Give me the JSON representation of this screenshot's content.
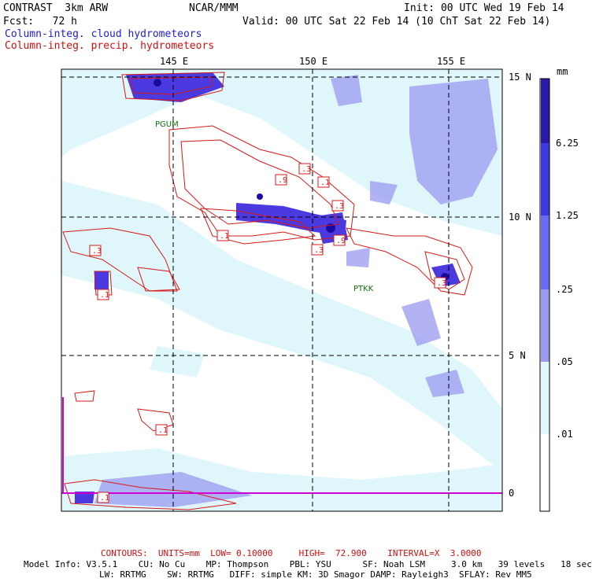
{
  "header": {
    "model": "CONTRAST  3km ARW",
    "org": "NCAR/MMM",
    "init": "Init: 00 UTC Wed 19 Feb 14",
    "fcst": "Fcst:   72 h",
    "valid": "Valid: 00 UTC Sat 22 Feb 14 (10 ChT Sat 22 Feb 14)",
    "field_cloud": "Column-integ. cloud hydrometeors",
    "field_precip": "Column-integ. precip. hydrometeors"
  },
  "axes": {
    "lon_labels": [
      "145 E",
      "150 E",
      "155 E"
    ],
    "lat_labels": [
      "15 N",
      "10 N",
      "5 N",
      "0"
    ]
  },
  "stations": [
    "PGUM",
    "PTKK"
  ],
  "contour_labels": [
    ".3",
    ".9",
    ".1",
    ".3",
    ".1",
    ".3",
    ".3",
    ".9",
    ".3",
    ".1",
    ".1",
    ".1"
  ],
  "colorbar": {
    "unit": "mm",
    "levels": [
      "6.25",
      "1.25",
      ".25",
      ".05",
      ".01"
    ],
    "colors": [
      "#2a1aa8",
      "#3a3ae0",
      "#6a6af0",
      "#9a9af0",
      "#c8ccf8",
      "#dff6fb",
      "#ffffff"
    ]
  },
  "footer": {
    "contours": "CONTOURS:  UNITS=mm  LOW= 0.10000     HIGH=  72.900    INTERVAL=X  3.0000",
    "model_info_1": "Model Info: V3.5.1    CU: No Cu    MP: Thompson    PBL: YSU      SF: Noah LSM     3.0 km   39 levels   18 sec",
    "model_info_2": "LW: RRTMG    SW: RRTMG   DIFF: simple KM: 3D Smagor DAMP: Rayleigh3  SFLAY: Rev MM5"
  }
}
